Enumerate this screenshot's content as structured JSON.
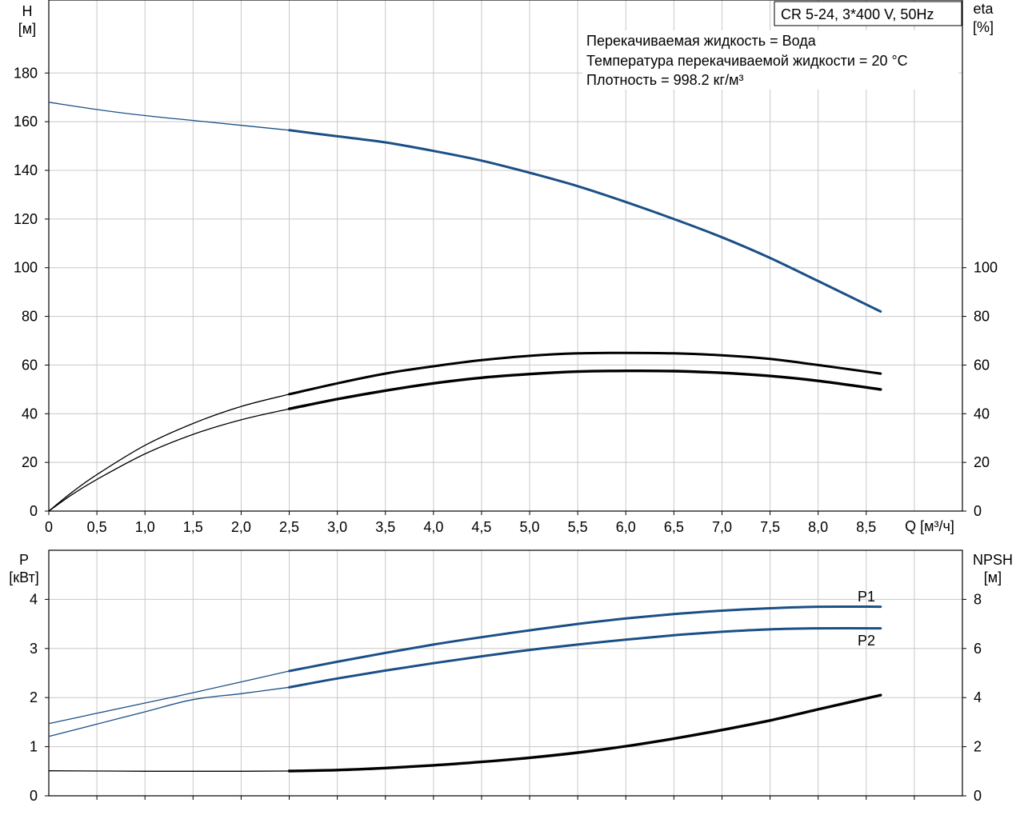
{
  "colors": {
    "blue": "#1a4f86",
    "black": "#000000",
    "grid": "#c8c8c8"
  },
  "title_box": "CR 5-24, 3*400 V, 50Hz",
  "info_lines": [
    "Перекачиваемая жидкость = Вода",
    "Температура перекачиваемой жидкости = 20 °C",
    "Плотность = 998.2 кг/м³"
  ],
  "chart_data": [
    {
      "type": "line",
      "xlabel": "Q [м³/ч]",
      "ylabel_left": [
        "H",
        "[м]"
      ],
      "ylabel_right": [
        "eta",
        "[%]"
      ],
      "xlim": [
        0,
        9.5
      ],
      "ylim_left": [
        0,
        210
      ],
      "ylim_right": [
        0,
        210
      ],
      "x_ticks": [
        "0",
        "0,5",
        "1,0",
        "1,5",
        "2,0",
        "2,5",
        "3,0",
        "3,5",
        "4,0",
        "4,5",
        "5,0",
        "5,5",
        "6,0",
        "6,5",
        "7,0",
        "7,5",
        "8,0",
        "8,5"
      ],
      "y_ticks_left": [
        "0",
        "20",
        "40",
        "60",
        "80",
        "100",
        "120",
        "140",
        "160",
        "180"
      ],
      "y_ticks_right": [
        "0",
        "20",
        "40",
        "60",
        "80",
        "100"
      ],
      "grid": true,
      "series": [
        {
          "axis": "left",
          "color": "blue",
          "bold_from": 2.5,
          "x": [
            0,
            0.5,
            1,
            1.5,
            2,
            2.5,
            3,
            3.5,
            4,
            4.5,
            5,
            5.5,
            6,
            6.5,
            7,
            7.5,
            8,
            8.65
          ],
          "y": [
            168,
            165,
            162.5,
            160.5,
            158.5,
            156.5,
            154,
            151.5,
            148,
            144,
            139,
            133.5,
            127,
            120,
            112.5,
            104,
            94.5,
            82
          ]
        },
        {
          "axis": "right",
          "color": "black",
          "bold_from": 2.5,
          "x": [
            0,
            0.25,
            0.5,
            1,
            1.5,
            2,
            2.5,
            3,
            3.5,
            4,
            4.5,
            5,
            5.5,
            6,
            6.5,
            7,
            7.5,
            8,
            8.65
          ],
          "y": [
            0,
            8,
            15,
            27,
            36,
            43,
            48,
            52.5,
            56.5,
            59.5,
            62,
            63.8,
            64.8,
            65,
            64.8,
            64,
            62.5,
            60,
            56.5
          ]
        },
        {
          "axis": "right",
          "color": "black",
          "bold_from": 2.5,
          "heavy": true,
          "x": [
            0,
            0.25,
            0.5,
            1,
            1.5,
            2,
            2.5,
            3,
            3.5,
            4,
            4.5,
            5,
            5.5,
            6,
            6.5,
            7,
            7.5,
            8,
            8.65
          ],
          "y": [
            0,
            7,
            13,
            23.5,
            31.5,
            37.5,
            42,
            46,
            49.5,
            52.5,
            54.8,
            56.3,
            57.3,
            57.6,
            57.5,
            56.8,
            55.5,
            53.5,
            50
          ]
        }
      ]
    },
    {
      "type": "line",
      "xlim": [
        0,
        9.5
      ],
      "ylim_left": [
        0,
        5
      ],
      "ylim_right": [
        0,
        10
      ],
      "ylabel_left": [
        "P",
        "[кВт]"
      ],
      "ylabel_right": [
        "NPSH",
        "[м]"
      ],
      "y_ticks_left": [
        "0",
        "1",
        "2",
        "3",
        "4"
      ],
      "y_ticks_right": [
        "0",
        "2",
        "4",
        "6",
        "8"
      ],
      "grid": true,
      "series": [
        {
          "name": "P1",
          "axis": "left",
          "color": "blue",
          "bold_from": 2.5,
          "x": [
            0,
            0.5,
            1,
            1.5,
            2,
            2.5,
            3,
            3.5,
            4,
            4.5,
            5,
            5.5,
            6,
            6.5,
            7,
            7.5,
            8,
            8.65
          ],
          "y": [
            1.47,
            1.68,
            1.89,
            2.1,
            2.32,
            2.54,
            2.73,
            2.91,
            3.08,
            3.23,
            3.37,
            3.5,
            3.61,
            3.7,
            3.77,
            3.82,
            3.85,
            3.85
          ]
        },
        {
          "name": "P2",
          "axis": "left",
          "color": "blue",
          "bold_from": 2.5,
          "x": [
            0,
            0.5,
            1,
            1.5,
            2,
            2.5,
            3,
            3.5,
            4,
            4.5,
            5,
            5.5,
            6,
            6.5,
            7,
            7.5,
            8,
            8.65
          ],
          "y": [
            1.21,
            1.46,
            1.71,
            1.96,
            2.08,
            2.21,
            2.39,
            2.55,
            2.7,
            2.84,
            2.97,
            3.08,
            3.18,
            3.27,
            3.34,
            3.39,
            3.41,
            3.41
          ]
        },
        {
          "axis": "right",
          "color": "black",
          "bold_from": 2.5,
          "heavy": true,
          "x": [
            0,
            0.5,
            1,
            1.5,
            2,
            2.5,
            3,
            3.5,
            4,
            4.5,
            5,
            5.5,
            6,
            6.5,
            7,
            7.5,
            8,
            8.65
          ],
          "y": [
            1.02,
            1.01,
            1.0,
            1.0,
            1.0,
            1.01,
            1.05,
            1.13,
            1.24,
            1.38,
            1.55,
            1.76,
            2.02,
            2.33,
            2.68,
            3.07,
            3.52,
            4.1
          ]
        }
      ]
    }
  ]
}
